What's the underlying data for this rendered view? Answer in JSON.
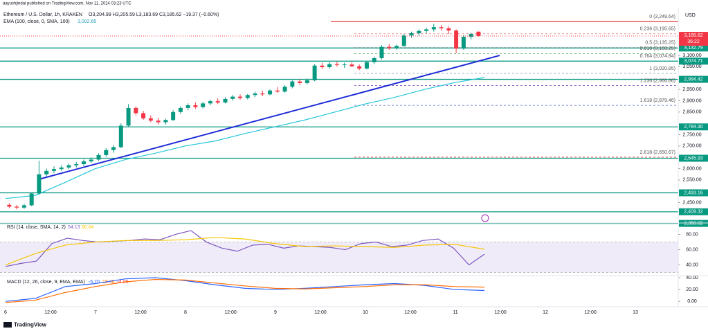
{
  "header": {
    "author": "aayushjindal published on TradingView.com, Nov 11, 2024 03:23 UTC",
    "symbol": "Ethereum / U.S. Dollar, 1h, KRAKEN",
    "ohlc": "O3,204.99 H3,205.59 L3,183.69 C3,185.62 −19.37 (−0.60%)",
    "ema_value": "3,002.65"
  },
  "footer": {
    "logo": "TradingView"
  },
  "chart_data": [
    {
      "type": "candlestick",
      "currency": "USD",
      "ylim": [
        2360,
        3302
      ],
      "yticks": [
        {
          "value": 3100,
          "label": "3,100.00"
        },
        {
          "value": 3050,
          "label": "3,050.00"
        },
        {
          "value": 2950,
          "label": "2,950.00"
        },
        {
          "value": 2900,
          "label": "2,900.00"
        },
        {
          "value": 2850,
          "label": "2,850.00"
        },
        {
          "value": 2750,
          "label": "2,750.00"
        },
        {
          "value": 2700,
          "label": "2,700.00"
        },
        {
          "value": 2600,
          "label": "2,600.00"
        },
        {
          "value": 2550,
          "label": "2,550.00"
        },
        {
          "value": 2450,
          "label": "2,450.00"
        }
      ],
      "xticks": [
        "6",
        "12:00",
        "7",
        "12:00",
        "8",
        "12:00",
        "9",
        "12:00",
        "10",
        "12:00",
        "11",
        "12:00",
        "12",
        "12:00",
        "13"
      ],
      "up_color": "#089981",
      "down_color": "#f23645",
      "candles": [
        [
          2440,
          2448,
          2425,
          2432
        ],
        [
          2432,
          2440,
          2420,
          2428
        ],
        [
          2428,
          2445,
          2422,
          2438
        ],
        [
          2438,
          2495,
          2435,
          2490
        ],
        [
          2490,
          2635,
          2485,
          2575
        ],
        [
          2575,
          2600,
          2565,
          2590
        ],
        [
          2590,
          2610,
          2580,
          2598
        ],
        [
          2598,
          2615,
          2590,
          2605
        ],
        [
          2605,
          2622,
          2598,
          2615
        ],
        [
          2615,
          2630,
          2605,
          2620
        ],
        [
          2620,
          2640,
          2612,
          2632
        ],
        [
          2632,
          2650,
          2625,
          2640
        ],
        [
          2640,
          2668,
          2635,
          2660
        ],
        [
          2660,
          2690,
          2652,
          2682
        ],
        [
          2682,
          2705,
          2670,
          2695
        ],
        [
          2695,
          2800,
          2690,
          2790
        ],
        [
          2790,
          2885,
          2785,
          2868
        ],
        [
          2868,
          2875,
          2835,
          2845
        ],
        [
          2845,
          2855,
          2815,
          2822
        ],
        [
          2822,
          2835,
          2805,
          2812
        ],
        [
          2812,
          2825,
          2795,
          2805
        ],
        [
          2805,
          2820,
          2795,
          2815
        ],
        [
          2815,
          2858,
          2810,
          2850
        ],
        [
          2850,
          2875,
          2842,
          2868
        ],
        [
          2868,
          2888,
          2858,
          2880
        ],
        [
          2880,
          2892,
          2865,
          2872
        ],
        [
          2872,
          2895,
          2866,
          2888
        ],
        [
          2888,
          2905,
          2880,
          2898
        ],
        [
          2898,
          2910,
          2885,
          2892
        ],
        [
          2892,
          2915,
          2888,
          2908
        ],
        [
          2908,
          2925,
          2900,
          2918
        ],
        [
          2918,
          2928,
          2905,
          2912
        ],
        [
          2912,
          2930,
          2906,
          2925
        ],
        [
          2925,
          2940,
          2915,
          2932
        ],
        [
          2932,
          2945,
          2920,
          2928
        ],
        [
          2928,
          2950,
          2924,
          2945
        ],
        [
          2945,
          2960,
          2935,
          2940
        ],
        [
          2940,
          2968,
          2936,
          2962
        ],
        [
          2962,
          2990,
          2955,
          2985
        ],
        [
          2985,
          2995,
          2970,
          2978
        ],
        [
          2978,
          2998,
          2972,
          2990
        ],
        [
          2990,
          3062,
          2986,
          3055
        ],
        [
          3055,
          3068,
          3040,
          3048
        ],
        [
          3048,
          3070,
          3042,
          3062
        ],
        [
          3062,
          3072,
          3050,
          3058
        ],
        [
          3058,
          3068,
          3045,
          3060
        ],
        [
          3060,
          3070,
          3048,
          3052
        ],
        [
          3052,
          3060,
          3035,
          3042
        ],
        [
          3042,
          3075,
          3038,
          3070
        ],
        [
          3070,
          3095,
          3062,
          3088
        ],
        [
          3088,
          3145,
          3082,
          3138
        ],
        [
          3138,
          3150,
          3125,
          3132
        ],
        [
          3132,
          3148,
          3125,
          3142
        ],
        [
          3142,
          3195,
          3138,
          3188
        ],
        [
          3188,
          3205,
          3178,
          3198
        ],
        [
          3198,
          3215,
          3188,
          3208
        ],
        [
          3208,
          3222,
          3198,
          3215
        ],
        [
          3215,
          3240,
          3205,
          3225
        ],
        [
          3225,
          3235,
          3210,
          3220
        ],
        [
          3220,
          3228,
          3195,
          3210
        ],
        [
          3210,
          3215,
          3110,
          3130
        ],
        [
          3130,
          3190,
          3125,
          3182
        ],
        [
          3182,
          3200,
          3170,
          3195
        ],
        [
          3204.99,
          3205.59,
          3183.69,
          3185.62
        ]
      ],
      "series": [
        {
          "name": "EMA (100, close, 0, SMA, 100)",
          "color": "#26c6da",
          "values": [
            2468,
            2482,
            2540,
            2600,
            2640,
            2668,
            2700,
            2722,
            2755,
            2785,
            2815,
            2850,
            2885,
            2915,
            2950,
            2980,
            3002.65
          ]
        }
      ],
      "trendline": {
        "color": "#1e2bd6",
        "values": [
          2552,
          3100
        ]
      },
      "level_color": "#089981",
      "levels": [
        {
          "value": 3132.79,
          "label": "3,132.79"
        },
        {
          "value": 3074.71,
          "label": "3,074.71"
        },
        {
          "value": 2994.42,
          "label": "2,994.42"
        },
        {
          "value": 2784.3,
          "label": "2,784.30"
        },
        {
          "value": 2645.93,
          "label": "2,645.93"
        },
        {
          "value": 2493.16,
          "label": "2,493.16"
        },
        {
          "value": 2409.32,
          "label": "2,409.32"
        },
        {
          "value": 2358.02,
          "label": "2,358.02"
        }
      ],
      "fib_levels": [
        {
          "value": 3249.64,
          "label": "0 (3,249.64)",
          "color": "#e53935"
        },
        {
          "value": 3195.65,
          "label": "0.236 (3,195.65)",
          "color": "#e57373"
        },
        {
          "value": 3135.25,
          "label": "0.5 (3,135.25)",
          "color": "#9e9e9e"
        },
        {
          "value": 3108.25,
          "label": "0.618 (3,108.25)",
          "color": "#4caf50"
        },
        {
          "value": 3074.84,
          "label": "0.764 (3,074.84)",
          "color": "#26a69a"
        },
        {
          "value": 3020.85,
          "label": "1 (3,020.85)",
          "color": "#90a4ae"
        },
        {
          "value": 2966.86,
          "label": "1.236 (2,966.86)",
          "color": "#7e57c2"
        },
        {
          "value": 2879.46,
          "label": "1.618 (2,879.46)",
          "color": "#5c6bc0"
        },
        {
          "value": 2650.67,
          "label": "2.618 (2,650.67)",
          "color": "#e53935"
        }
      ],
      "last_price": {
        "value": 3185.62,
        "label": "3,185.62",
        "countdown": "36:22",
        "color": "#f23645"
      }
    },
    {
      "type": "line",
      "title": "RSI (14, close, SMA, 14, 2)",
      "readouts": [
        "54.13",
        "60.64"
      ],
      "ylim": [
        26,
        95
      ],
      "band": [
        30,
        70
      ],
      "band_color": "#7e57c2",
      "yticks": [
        {
          "value": 80,
          "label": "80.00"
        },
        {
          "value": 60,
          "label": "60.00"
        },
        {
          "value": 40,
          "label": "40.00"
        }
      ],
      "series": [
        {
          "name": "RSI",
          "color": "#7e57c2",
          "values": [
            38,
            42,
            45,
            68,
            75,
            72,
            70,
            71,
            72,
            74,
            73,
            80,
            85,
            70,
            62,
            58,
            66,
            67,
            62,
            65,
            64,
            63,
            60,
            68,
            70,
            64,
            66,
            72,
            74,
            62,
            40,
            54.13
          ]
        },
        {
          "name": "MA",
          "color": "#f7c600",
          "values": [
            40,
            55,
            66,
            70,
            72,
            72,
            73,
            76,
            74,
            68,
            64,
            65,
            64,
            63,
            66,
            67,
            60.64
          ]
        }
      ]
    },
    {
      "type": "line",
      "title": "MACD (12, 26, close, 9, EMA, EMA)",
      "readouts": [
        "-5.70",
        "18.36",
        "24.06"
      ],
      "ylim": [
        -8,
        43.5
      ],
      "yticks": [
        {
          "value": 40,
          "label": "40.00"
        },
        {
          "value": 20,
          "label": "20.00"
        },
        {
          "value": 0,
          "label": "0.00"
        }
      ],
      "series": [
        {
          "name": "MACD",
          "color": "#2962ff",
          "values": [
            0,
            5,
            25,
            30,
            38,
            40,
            35,
            28,
            22,
            20,
            22,
            25,
            28,
            30,
            27,
            20,
            18.36
          ]
        },
        {
          "name": "Signal",
          "color": "#ff6d00",
          "values": [
            -2,
            2,
            15,
            25,
            33,
            37,
            36,
            31,
            26,
            22,
            21,
            23,
            25,
            28,
            28,
            25,
            24.06
          ]
        }
      ]
    }
  ]
}
